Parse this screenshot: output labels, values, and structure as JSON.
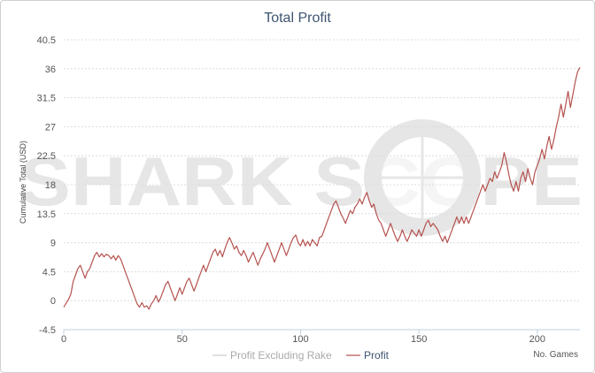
{
  "chart_data": {
    "type": "line",
    "title": "Total Profit",
    "ylabel": "Cumulative Total (USD)",
    "xlabel": "No. Games",
    "xlim": [
      0,
      218
    ],
    "ylim": [
      -4.5,
      40.5
    ],
    "x_ticks": [
      "0",
      "50",
      "100",
      "150",
      "200"
    ],
    "x_tick_values": [
      0,
      50,
      100,
      150,
      200
    ],
    "y_ticks": [
      "-4.5",
      "0",
      "4.5",
      "9",
      "13.5",
      "18",
      "22.5",
      "27",
      "31.5",
      "36",
      "40.5"
    ],
    "y_tick_values": [
      -4.5,
      0,
      4.5,
      9,
      13.5,
      18,
      22.5,
      27,
      31.5,
      36,
      40.5
    ],
    "grid": true,
    "legend_position": "bottom-center",
    "watermark": "SHARK SCOPE",
    "series": [
      {
        "name": "Profit Excluding Rake",
        "color": "#cccccc",
        "points": []
      },
      {
        "name": "Profit",
        "color": "#b5524f",
        "points": [
          [
            0,
            -1
          ],
          [
            2,
            0.2
          ],
          [
            3,
            1
          ],
          [
            4,
            3
          ],
          [
            5,
            4
          ],
          [
            6,
            5
          ],
          [
            7,
            5.5
          ],
          [
            8,
            4.5
          ],
          [
            9,
            3.5
          ],
          [
            10,
            4.5
          ],
          [
            11,
            5
          ],
          [
            12,
            6
          ],
          [
            13,
            7
          ],
          [
            14,
            7.5
          ],
          [
            15,
            6.8
          ],
          [
            16,
            7.3
          ],
          [
            17,
            6.8
          ],
          [
            18,
            7.2
          ],
          [
            19,
            7
          ],
          [
            20,
            6.5
          ],
          [
            21,
            7
          ],
          [
            22,
            6.3
          ],
          [
            23,
            7
          ],
          [
            24,
            6.5
          ],
          [
            25,
            5.5
          ],
          [
            26,
            4.5
          ],
          [
            27,
            3.5
          ],
          [
            28,
            2.5
          ],
          [
            29,
            1.5
          ],
          [
            30,
            0.5
          ],
          [
            31,
            -0.5
          ],
          [
            32,
            -1
          ],
          [
            33,
            -0.3
          ],
          [
            34,
            -1
          ],
          [
            35,
            -0.8
          ],
          [
            36,
            -1.3
          ],
          [
            37,
            -0.5
          ],
          [
            38,
            0
          ],
          [
            39,
            0.8
          ],
          [
            40,
            -0.2
          ],
          [
            41,
            0.5
          ],
          [
            42,
            1.5
          ],
          [
            43,
            2.5
          ],
          [
            44,
            3
          ],
          [
            45,
            2
          ],
          [
            46,
            1
          ],
          [
            47,
            0
          ],
          [
            48,
            1
          ],
          [
            49,
            2
          ],
          [
            50,
            1
          ],
          [
            51,
            2
          ],
          [
            52,
            3
          ],
          [
            53,
            3.5
          ],
          [
            54,
            2.5
          ],
          [
            55,
            1.5
          ],
          [
            56,
            2.5
          ],
          [
            57,
            3.5
          ],
          [
            58,
            4.5
          ],
          [
            59,
            5.5
          ],
          [
            60,
            4.5
          ],
          [
            61,
            5.5
          ],
          [
            62,
            6.5
          ],
          [
            63,
            7.5
          ],
          [
            64,
            8
          ],
          [
            65,
            7
          ],
          [
            66,
            7.8
          ],
          [
            67,
            6.8
          ],
          [
            68,
            8
          ],
          [
            69,
            9
          ],
          [
            70,
            9.8
          ],
          [
            71,
            9
          ],
          [
            72,
            8
          ],
          [
            73,
            8.5
          ],
          [
            74,
            7.5
          ],
          [
            75,
            7
          ],
          [
            76,
            7.8
          ],
          [
            77,
            7
          ],
          [
            78,
            6
          ],
          [
            79,
            6.8
          ],
          [
            80,
            7.5
          ],
          [
            81,
            6.5
          ],
          [
            82,
            5.5
          ],
          [
            83,
            6.5
          ],
          [
            84,
            7.2
          ],
          [
            85,
            8
          ],
          [
            86,
            9
          ],
          [
            87,
            8
          ],
          [
            88,
            7
          ],
          [
            89,
            6
          ],
          [
            90,
            7
          ],
          [
            91,
            8
          ],
          [
            92,
            9
          ],
          [
            93,
            8
          ],
          [
            94,
            7
          ],
          [
            95,
            8
          ],
          [
            96,
            9
          ],
          [
            97,
            9.8
          ],
          [
            98,
            10.2
          ],
          [
            99,
            9
          ],
          [
            100,
            8.5
          ],
          [
            101,
            9.5
          ],
          [
            102,
            8.5
          ],
          [
            103,
            9.2
          ],
          [
            104,
            8.5
          ],
          [
            105,
            9.5
          ],
          [
            106,
            9
          ],
          [
            107,
            8.5
          ],
          [
            108,
            9.8
          ],
          [
            109,
            10
          ],
          [
            110,
            11
          ],
          [
            111,
            12
          ],
          [
            112,
            13
          ],
          [
            113,
            14
          ],
          [
            114,
            15
          ],
          [
            115,
            15.5
          ],
          [
            116,
            14.5
          ],
          [
            117,
            13.5
          ],
          [
            118,
            12.8
          ],
          [
            119,
            12
          ],
          [
            120,
            13
          ],
          [
            121,
            14
          ],
          [
            122,
            13.5
          ],
          [
            123,
            14.5
          ],
          [
            124,
            15
          ],
          [
            125,
            15.8
          ],
          [
            126,
            15
          ],
          [
            127,
            16
          ],
          [
            128,
            16.8
          ],
          [
            129,
            15.5
          ],
          [
            130,
            14.5
          ],
          [
            131,
            15
          ],
          [
            132,
            13.5
          ],
          [
            133,
            12.5
          ],
          [
            134,
            12
          ],
          [
            135,
            11
          ],
          [
            136,
            10
          ],
          [
            137,
            11
          ],
          [
            138,
            12
          ],
          [
            139,
            11
          ],
          [
            140,
            10
          ],
          [
            141,
            9.2
          ],
          [
            142,
            10
          ],
          [
            143,
            11
          ],
          [
            144,
            10
          ],
          [
            145,
            9.2
          ],
          [
            146,
            10
          ],
          [
            147,
            11
          ],
          [
            148,
            10.5
          ],
          [
            149,
            10
          ],
          [
            150,
            11
          ],
          [
            151,
            10
          ],
          [
            152,
            11
          ],
          [
            153,
            12
          ],
          [
            154,
            12.5
          ],
          [
            155,
            11.5
          ],
          [
            156,
            12
          ],
          [
            157,
            11.5
          ],
          [
            158,
            11
          ],
          [
            159,
            10
          ],
          [
            160,
            9.2
          ],
          [
            161,
            10
          ],
          [
            162,
            9
          ],
          [
            163,
            10
          ],
          [
            164,
            11
          ],
          [
            165,
            12
          ],
          [
            166,
            13
          ],
          [
            167,
            12
          ],
          [
            168,
            13
          ],
          [
            169,
            12
          ],
          [
            170,
            13
          ],
          [
            171,
            12
          ],
          [
            172,
            13
          ],
          [
            173,
            14
          ],
          [
            174,
            15
          ],
          [
            175,
            16
          ],
          [
            176,
            17
          ],
          [
            177,
            18
          ],
          [
            178,
            17
          ],
          [
            179,
            18
          ],
          [
            180,
            19
          ],
          [
            181,
            18.5
          ],
          [
            182,
            20
          ],
          [
            183,
            19
          ],
          [
            184,
            20
          ],
          [
            185,
            21
          ],
          [
            186,
            23
          ],
          [
            187,
            21.5
          ],
          [
            188,
            19.5
          ],
          [
            189,
            18
          ],
          [
            190,
            17
          ],
          [
            191,
            18.5
          ],
          [
            192,
            17
          ],
          [
            193,
            19
          ],
          [
            194,
            20
          ],
          [
            195,
            18.5
          ],
          [
            196,
            20.5
          ],
          [
            197,
            19
          ],
          [
            198,
            18
          ],
          [
            199,
            20
          ],
          [
            200,
            21
          ],
          [
            201,
            22
          ],
          [
            202,
            23.5
          ],
          [
            203,
            22
          ],
          [
            204,
            24
          ],
          [
            205,
            25.5
          ],
          [
            206,
            23.5
          ],
          [
            207,
            25
          ],
          [
            208,
            27
          ],
          [
            209,
            28.5
          ],
          [
            210,
            30.5
          ],
          [
            211,
            28.5
          ],
          [
            212,
            30.5
          ],
          [
            213,
            32.5
          ],
          [
            214,
            30
          ],
          [
            215,
            32
          ],
          [
            216,
            34
          ],
          [
            217,
            35.5
          ],
          [
            218,
            36.2
          ]
        ]
      }
    ]
  }
}
